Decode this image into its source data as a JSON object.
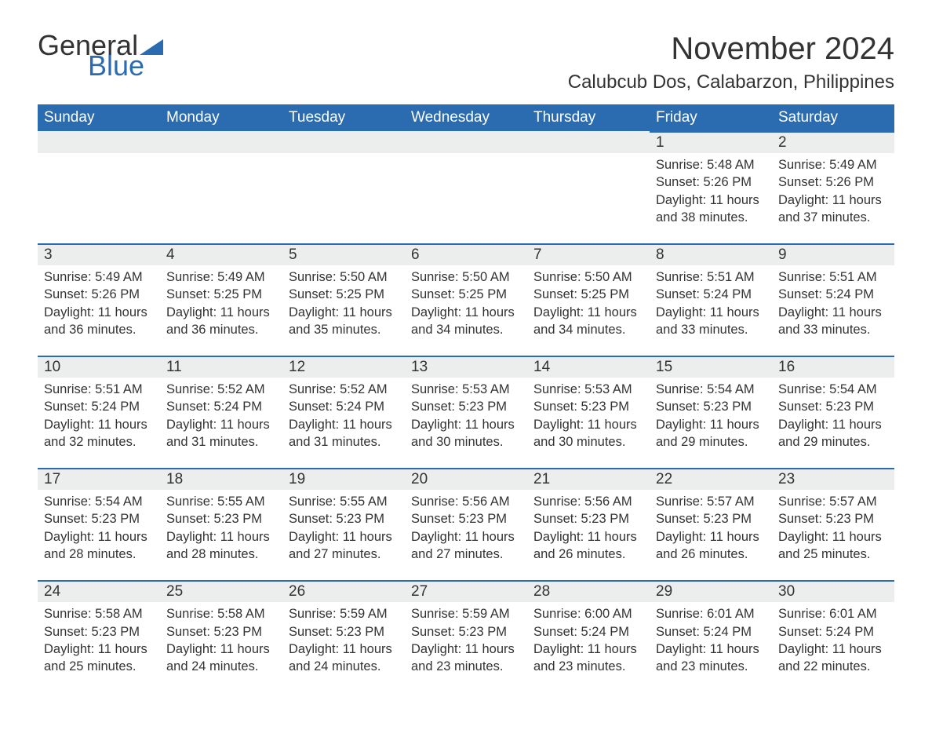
{
  "logo": {
    "text_general": "General",
    "text_blue": "Blue",
    "flag_color": "#2b6cb0"
  },
  "title": "November 2024",
  "location": "Calubcub Dos, Calabarzon, Philippines",
  "colors": {
    "header_bg": "#2b6cb0",
    "header_text": "#ffffff",
    "row_top_border": "#2b6cb0",
    "daynum_bg": "#eceded",
    "body_text": "#333333",
    "page_bg": "#ffffff"
  },
  "typography": {
    "title_fontsize": 40,
    "location_fontsize": 24,
    "header_fontsize": 19,
    "daynum_fontsize": 19,
    "body_fontsize": 16.5,
    "font_family": "Arial"
  },
  "day_headers": [
    "Sunday",
    "Monday",
    "Tuesday",
    "Wednesday",
    "Thursday",
    "Friday",
    "Saturday"
  ],
  "weeks": [
    [
      null,
      null,
      null,
      null,
      null,
      {
        "n": "1",
        "sunrise": "5:48 AM",
        "sunset": "5:26 PM",
        "daylight": "11 hours and 38 minutes."
      },
      {
        "n": "2",
        "sunrise": "5:49 AM",
        "sunset": "5:26 PM",
        "daylight": "11 hours and 37 minutes."
      }
    ],
    [
      {
        "n": "3",
        "sunrise": "5:49 AM",
        "sunset": "5:26 PM",
        "daylight": "11 hours and 36 minutes."
      },
      {
        "n": "4",
        "sunrise": "5:49 AM",
        "sunset": "5:25 PM",
        "daylight": "11 hours and 36 minutes."
      },
      {
        "n": "5",
        "sunrise": "5:50 AM",
        "sunset": "5:25 PM",
        "daylight": "11 hours and 35 minutes."
      },
      {
        "n": "6",
        "sunrise": "5:50 AM",
        "sunset": "5:25 PM",
        "daylight": "11 hours and 34 minutes."
      },
      {
        "n": "7",
        "sunrise": "5:50 AM",
        "sunset": "5:25 PM",
        "daylight": "11 hours and 34 minutes."
      },
      {
        "n": "8",
        "sunrise": "5:51 AM",
        "sunset": "5:24 PM",
        "daylight": "11 hours and 33 minutes."
      },
      {
        "n": "9",
        "sunrise": "5:51 AM",
        "sunset": "5:24 PM",
        "daylight": "11 hours and 33 minutes."
      }
    ],
    [
      {
        "n": "10",
        "sunrise": "5:51 AM",
        "sunset": "5:24 PM",
        "daylight": "11 hours and 32 minutes."
      },
      {
        "n": "11",
        "sunrise": "5:52 AM",
        "sunset": "5:24 PM",
        "daylight": "11 hours and 31 minutes."
      },
      {
        "n": "12",
        "sunrise": "5:52 AM",
        "sunset": "5:24 PM",
        "daylight": "11 hours and 31 minutes."
      },
      {
        "n": "13",
        "sunrise": "5:53 AM",
        "sunset": "5:23 PM",
        "daylight": "11 hours and 30 minutes."
      },
      {
        "n": "14",
        "sunrise": "5:53 AM",
        "sunset": "5:23 PM",
        "daylight": "11 hours and 30 minutes."
      },
      {
        "n": "15",
        "sunrise": "5:54 AM",
        "sunset": "5:23 PM",
        "daylight": "11 hours and 29 minutes."
      },
      {
        "n": "16",
        "sunrise": "5:54 AM",
        "sunset": "5:23 PM",
        "daylight": "11 hours and 29 minutes."
      }
    ],
    [
      {
        "n": "17",
        "sunrise": "5:54 AM",
        "sunset": "5:23 PM",
        "daylight": "11 hours and 28 minutes."
      },
      {
        "n": "18",
        "sunrise": "5:55 AM",
        "sunset": "5:23 PM",
        "daylight": "11 hours and 28 minutes."
      },
      {
        "n": "19",
        "sunrise": "5:55 AM",
        "sunset": "5:23 PM",
        "daylight": "11 hours and 27 minutes."
      },
      {
        "n": "20",
        "sunrise": "5:56 AM",
        "sunset": "5:23 PM",
        "daylight": "11 hours and 27 minutes."
      },
      {
        "n": "21",
        "sunrise": "5:56 AM",
        "sunset": "5:23 PM",
        "daylight": "11 hours and 26 minutes."
      },
      {
        "n": "22",
        "sunrise": "5:57 AM",
        "sunset": "5:23 PM",
        "daylight": "11 hours and 26 minutes."
      },
      {
        "n": "23",
        "sunrise": "5:57 AM",
        "sunset": "5:23 PM",
        "daylight": "11 hours and 25 minutes."
      }
    ],
    [
      {
        "n": "24",
        "sunrise": "5:58 AM",
        "sunset": "5:23 PM",
        "daylight": "11 hours and 25 minutes."
      },
      {
        "n": "25",
        "sunrise": "5:58 AM",
        "sunset": "5:23 PM",
        "daylight": "11 hours and 24 minutes."
      },
      {
        "n": "26",
        "sunrise": "5:59 AM",
        "sunset": "5:23 PM",
        "daylight": "11 hours and 24 minutes."
      },
      {
        "n": "27",
        "sunrise": "5:59 AM",
        "sunset": "5:23 PM",
        "daylight": "11 hours and 23 minutes."
      },
      {
        "n": "28",
        "sunrise": "6:00 AM",
        "sunset": "5:24 PM",
        "daylight": "11 hours and 23 minutes."
      },
      {
        "n": "29",
        "sunrise": "6:01 AM",
        "sunset": "5:24 PM",
        "daylight": "11 hours and 23 minutes."
      },
      {
        "n": "30",
        "sunrise": "6:01 AM",
        "sunset": "5:24 PM",
        "daylight": "11 hours and 22 minutes."
      }
    ]
  ],
  "labels": {
    "sunrise": "Sunrise: ",
    "sunset": "Sunset: ",
    "daylight": "Daylight: "
  }
}
